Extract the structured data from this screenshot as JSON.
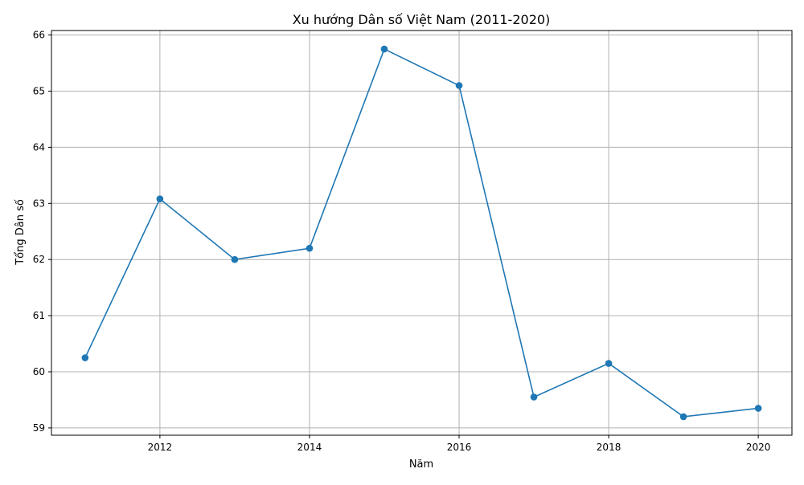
{
  "chart_data": {
    "type": "line",
    "title": "Xu hướng Dân số Việt Nam (2011-2020)",
    "xlabel": "Năm",
    "ylabel": "Tổng Dân số",
    "x": [
      2011,
      2012,
      2013,
      2014,
      2015,
      2016,
      2017,
      2018,
      2019,
      2020
    ],
    "series": [
      {
        "values": [
          60.25,
          63.08,
          62.0,
          62.2,
          65.75,
          65.1,
          59.55,
          60.15,
          59.2,
          59.35
        ]
      }
    ],
    "xlim": [
      2010.55,
      2020.45
    ],
    "ylim": [
      58.87,
      66.08
    ],
    "xticks": [
      2012,
      2014,
      2016,
      2018,
      2020
    ],
    "yticks": [
      59,
      60,
      61,
      62,
      63,
      64,
      65,
      66
    ],
    "grid": true,
    "markers": true,
    "line_color": "#1f77b4",
    "grid_color": "#b0b0b0"
  }
}
